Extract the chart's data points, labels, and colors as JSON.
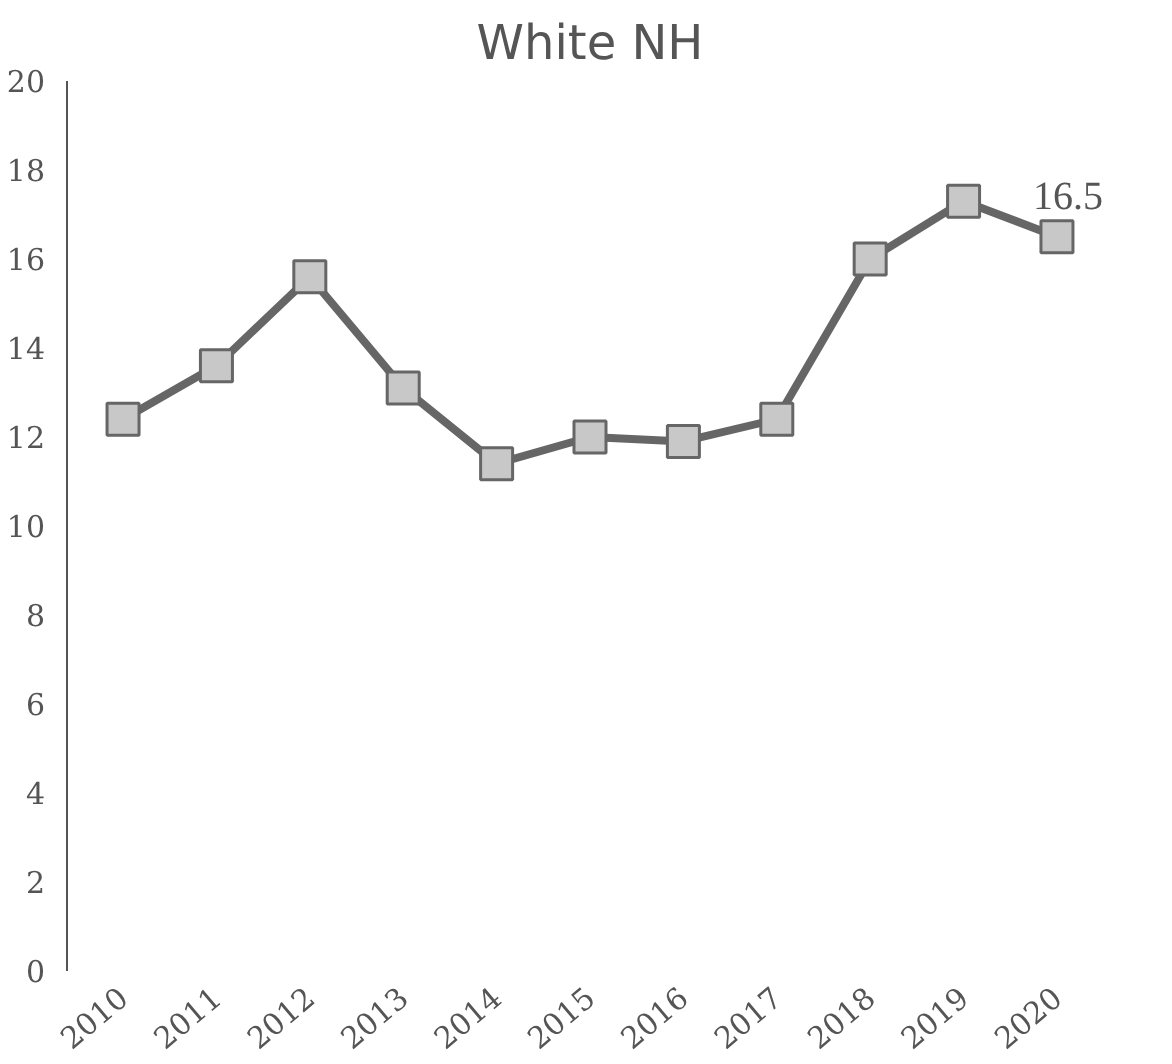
{
  "chart_data": {
    "type": "line",
    "title": "White NH",
    "categories": [
      "2010",
      "2011",
      "2012",
      "2013",
      "2014",
      "2015",
      "2016",
      "2017",
      "2018",
      "2019",
      "2020"
    ],
    "series": [
      {
        "color": "#666666",
        "values": [
          12.4,
          13.6,
          15.6,
          13.1,
          11.4,
          12.0,
          11.9,
          12.4,
          16.0,
          17.3,
          16.5
        ],
        "value_labels": [
          null,
          null,
          null,
          null,
          null,
          null,
          null,
          null,
          null,
          null,
          "16.5"
        ]
      }
    ],
    "ylim": [
      0,
      20
    ],
    "yticks": [
      0,
      2,
      4,
      6,
      8,
      10,
      12,
      14,
      16,
      18,
      20
    ],
    "grid": false,
    "marker": "square",
    "line_style": "solid"
  }
}
